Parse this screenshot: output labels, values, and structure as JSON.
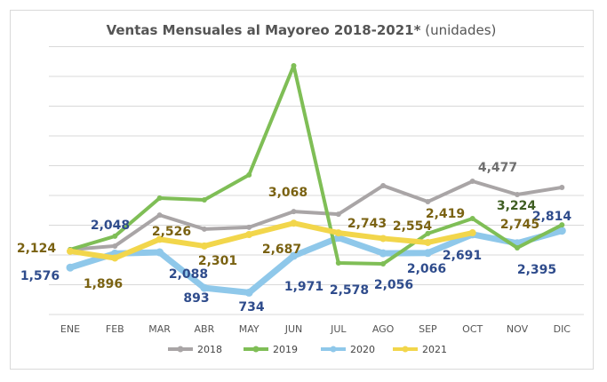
{
  "chart_data": {
    "type": "line",
    "title": "Ventas Mensuales al Mayoreo 2018-2021*",
    "subtitle": "(unidades)",
    "xlabel": "",
    "ylabel": "",
    "ylim": [
      0,
      9000
    ],
    "grid": true,
    "legend_placement": "bottom",
    "categories": [
      "ENE",
      "FEB",
      "MAR",
      "ABR",
      "MAY",
      "JUN",
      "JUL",
      "AGO",
      "SEP",
      "OCT",
      "NOV",
      "DIC"
    ],
    "series": [
      {
        "name": "2018",
        "color": "#a9a5a6",
        "label_color": "#6f6f6f",
        "values": [
          2180,
          2300,
          3340,
          2870,
          2930,
          3460,
          3370,
          4330,
          3790,
          4477,
          4030,
          4270
        ],
        "labels": [
          null,
          null,
          null,
          null,
          null,
          null,
          null,
          null,
          null,
          "4,477",
          null,
          null
        ]
      },
      {
        "name": "2019",
        "color": "#7fbe56",
        "label_color": "#3f5e22",
        "values": [
          2180,
          2630,
          3910,
          3850,
          4690,
          8360,
          1730,
          1700,
          2720,
          3224,
          2240,
          3010
        ],
        "labels": [
          null,
          null,
          null,
          null,
          null,
          null,
          null,
          null,
          null,
          "3,224",
          null,
          null
        ]
      },
      {
        "name": "2020",
        "color": "#8fc8ea",
        "label_color": "#2f4c8c",
        "values": [
          1576,
          2048,
          2088,
          893,
          734,
          1971,
          2578,
          2056,
          2066,
          2691,
          2395,
          2814
        ],
        "labels": [
          "1,576",
          "2,048",
          "2,088",
          "893",
          "734",
          "1,971",
          "2,578",
          "2,056",
          "2,066",
          "2,691",
          "2,395",
          "2,814"
        ]
      },
      {
        "name": "2021",
        "color": "#f2d64b",
        "label_color": "#7a6212",
        "values": [
          2124,
          1896,
          2526,
          2301,
          2687,
          3068,
          2743,
          2554,
          2419,
          2745,
          null,
          null
        ],
        "labels": [
          "2,124",
          "1,896",
          "2,526",
          "2,301",
          "2,687",
          "3,068",
          "2,743",
          "2,554",
          "2,419",
          "2,745",
          null,
          null
        ]
      }
    ]
  }
}
